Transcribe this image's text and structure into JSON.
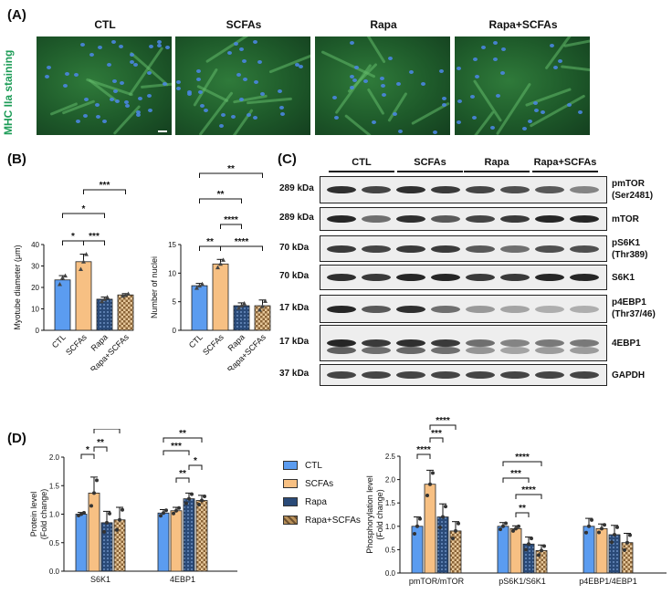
{
  "panel_labels": {
    "a": "(A)",
    "b": "(B)",
    "c": "(C)",
    "d": "(D)"
  },
  "micrograph": {
    "stain_label": "MHC IIa staining",
    "conditions": [
      "CTL",
      "SCFAs",
      "Rapa",
      "Rapa+SCFAs"
    ]
  },
  "colors": {
    "CTL": "#5b9cf0",
    "SCFAs": "#f7c083",
    "Rapa": "#2a4a78",
    "Rapa+SCFAs": "#b9915a"
  },
  "western_blot": {
    "groups": [
      "CTL",
      "SCFAs",
      "Rapa",
      "Rapa+SCFAs"
    ],
    "rows": [
      {
        "kda": "289 kDa",
        "protein": "pmTOR",
        "protein2": "(Ser2481)"
      },
      {
        "kda": "289 kDa",
        "protein": "mTOR",
        "protein2": ""
      },
      {
        "kda": "70 kDa",
        "protein": "pS6K1",
        "protein2": "(Thr389)"
      },
      {
        "kda": "70 kDa",
        "protein": "S6K1",
        "protein2": ""
      },
      {
        "kda": "17 kDa",
        "protein": "p4EBP1",
        "protein2": "(Thr37/46)"
      },
      {
        "kda": "17 kDa",
        "protein": "4EBP1",
        "protein2": ""
      },
      {
        "kda": "37 kDa",
        "protein": "GAPDH",
        "protein2": ""
      }
    ]
  },
  "legend": {
    "items": [
      "CTL",
      "SCFAs",
      "Rapa",
      "Rapa+SCFAs"
    ]
  },
  "chart_data": [
    {
      "type": "bar",
      "categories": [
        "CTL",
        "SCFAs",
        "Rapa",
        "Rapa+SCFAs"
      ],
      "values": [
        23.5,
        32,
        14.5,
        16.5
      ],
      "points": [
        [
          21.5,
          24.5,
          25.5
        ],
        [
          28.5,
          32,
          35.5
        ],
        [
          13.5,
          14.5,
          15.5
        ],
        [
          16,
          16.5,
          17
        ]
      ],
      "errors": [
        2,
        3.5,
        1,
        0.6
      ],
      "ylabel": "Myotube diameter (μm)",
      "yticks": [
        "0",
        "10",
        "20",
        "30",
        "40"
      ],
      "ylim": [
        0,
        40
      ],
      "significance": [
        {
          "from": 0,
          "to": 1,
          "label": "*"
        },
        {
          "from": 1,
          "to": 2,
          "label": "***"
        },
        {
          "from": 0,
          "to": 2,
          "label": "*"
        },
        {
          "from": 1,
          "to": 3,
          "label": "***"
        }
      ]
    },
    {
      "type": "bar",
      "categories": [
        "CTL",
        "SCFAs",
        "Rapa",
        "Rapa+SCFAs"
      ],
      "values": [
        7.8,
        11.6,
        4.3,
        4.3
      ],
      "points": [
        [
          7.4,
          7.8,
          8.1
        ],
        [
          11.0,
          11.6,
          12.3
        ],
        [
          3.9,
          4.3,
          4.7
        ],
        [
          3.6,
          4.2,
          5.1
        ]
      ],
      "errors": [
        0.4,
        0.8,
        0.5,
        1.0
      ],
      "ylabel": "Number of nuclei",
      "yticks": [
        "0",
        "5",
        "10",
        "15"
      ],
      "ylim": [
        0,
        15
      ],
      "significance": [
        {
          "from": 0,
          "to": 1,
          "label": "**"
        },
        {
          "from": 1,
          "to": 2,
          "label": "****"
        },
        {
          "from": 1,
          "to": 3,
          "label": "****"
        },
        {
          "from": 0,
          "to": 2,
          "label": "**"
        },
        {
          "from": 0,
          "to": 3,
          "label": "**"
        }
      ]
    },
    {
      "type": "bar",
      "categories": [
        "S6K1",
        "4EBP1"
      ],
      "series_keys": [
        "CTL",
        "SCFAs",
        "Rapa",
        "Rapa+SCFAs"
      ],
      "values": [
        [
          1.0,
          1.37,
          0.85,
          0.9
        ],
        [
          1.02,
          1.06,
          1.27,
          1.24
        ]
      ],
      "errors": [
        [
          0.03,
          0.28,
          0.2,
          0.22
        ],
        [
          0.06,
          0.06,
          0.1,
          0.09
        ]
      ],
      "ylabel": "Protein level",
      "ylabel2": "(Fold change)",
      "yticks": [
        "0.0",
        "0.5",
        "1.0",
        "1.5",
        "2.0"
      ],
      "ylim": [
        0,
        2.0
      ],
      "significance": [
        {
          "group": 0,
          "from": 0,
          "to": 1,
          "label": "*"
        },
        {
          "group": 0,
          "from": 1,
          "to": 2,
          "label": "**"
        },
        {
          "group": 0,
          "from": 1,
          "to": 3,
          "label": "**"
        },
        {
          "group": 1,
          "from": 1,
          "to": 2,
          "label": "**"
        },
        {
          "group": 1,
          "from": 2,
          "to": 3,
          "label": "*"
        },
        {
          "group": 1,
          "from": 0,
          "to": 2,
          "label": "***"
        },
        {
          "group": 1,
          "from": 0,
          "to": 3,
          "label": "**"
        }
      ]
    },
    {
      "type": "bar",
      "categories": [
        "pmTOR/mTOR",
        "pS6K1/S6K1",
        "p4EBP1/4EBP1"
      ],
      "series_keys": [
        "CTL",
        "SCFAs",
        "Rapa",
        "Rapa+SCFAs"
      ],
      "values": [
        [
          1.0,
          1.9,
          1.2,
          0.9
        ],
        [
          1.0,
          0.95,
          0.62,
          0.48
        ],
        [
          1.0,
          0.95,
          0.82,
          0.65
        ]
      ],
      "errors": [
        [
          0.2,
          0.3,
          0.28,
          0.2
        ],
        [
          0.08,
          0.06,
          0.15,
          0.12
        ],
        [
          0.17,
          0.1,
          0.2,
          0.2
        ]
      ],
      "ylabel": "Phosphorylation level",
      "ylabel2": "(Fold change)",
      "yticks": [
        "0.0",
        "0.5",
        "1.0",
        "1.5",
        "2.0",
        "2.5"
      ],
      "ylim": [
        0,
        2.5
      ],
      "significance": [
        {
          "group": 0,
          "from": 0,
          "to": 1,
          "label": "****"
        },
        {
          "group": 0,
          "from": 1,
          "to": 2,
          "label": "***"
        },
        {
          "group": 0,
          "from": 1,
          "to": 3,
          "label": "****"
        },
        {
          "group": 1,
          "from": 1,
          "to": 2,
          "label": "**"
        },
        {
          "group": 1,
          "from": 1,
          "to": 3,
          "label": "****"
        },
        {
          "group": 1,
          "from": 0,
          "to": 2,
          "label": "***"
        },
        {
          "group": 1,
          "from": 0,
          "to": 3,
          "label": "****"
        }
      ]
    }
  ]
}
